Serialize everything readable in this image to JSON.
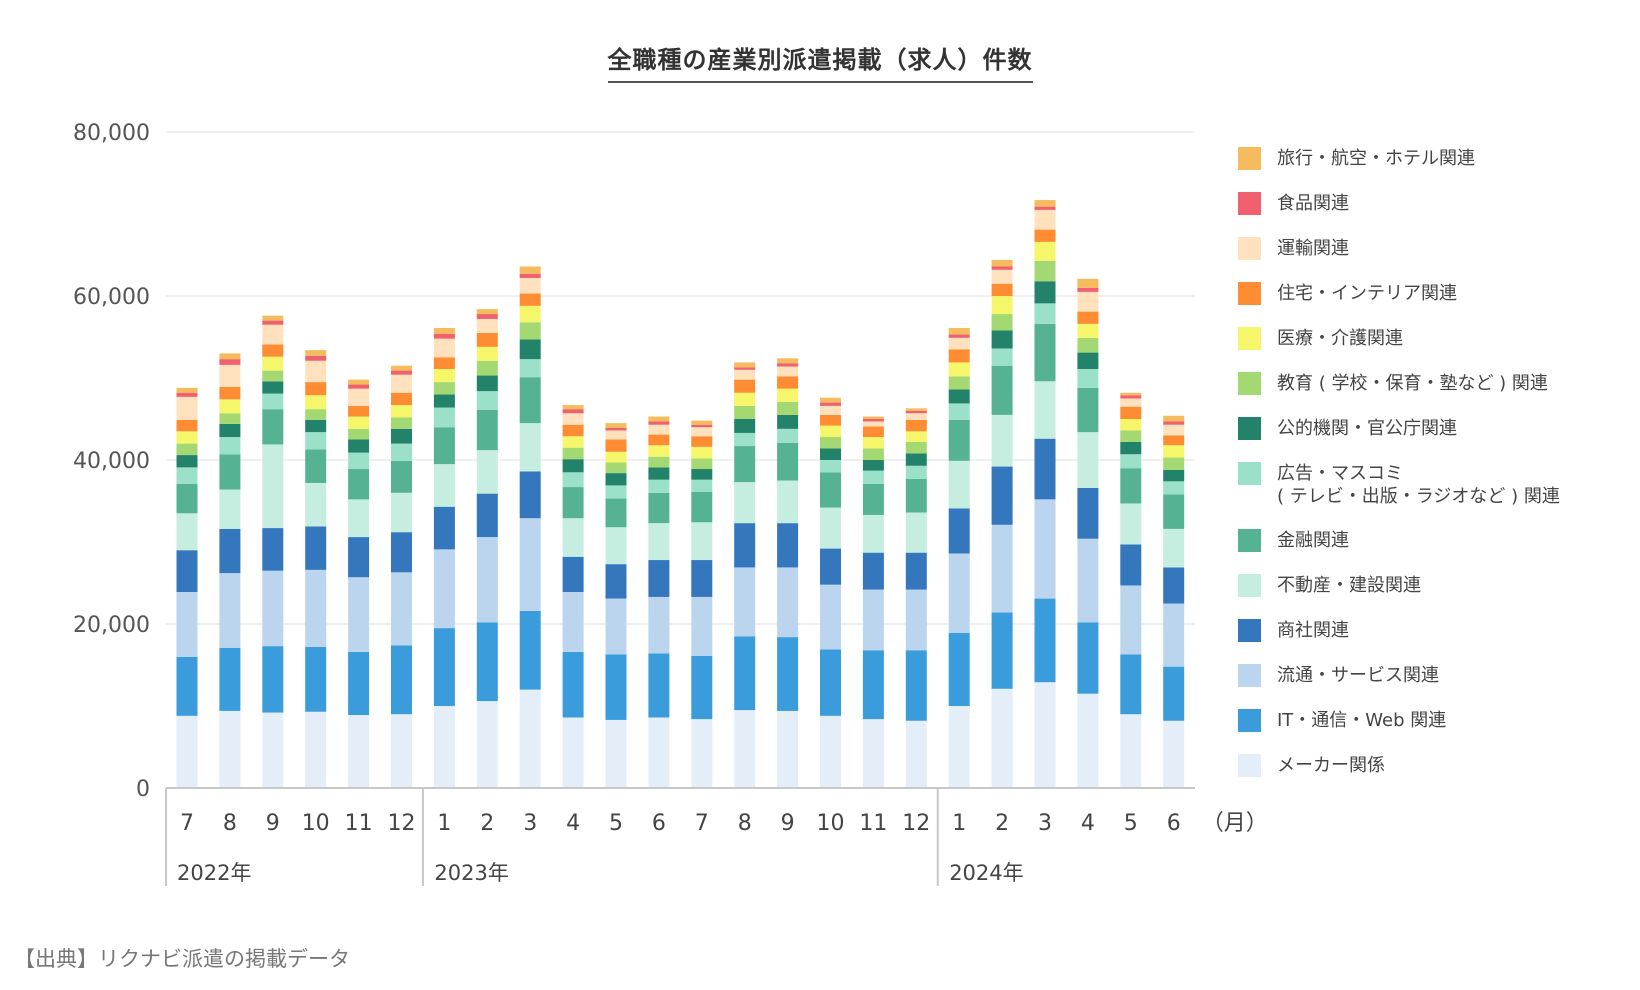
{
  "title": "全職種の産業別派遣掲載（求人）件数",
  "source": "【出典】リクナビ派遣の掲載データ",
  "chart_data": {
    "type": "bar",
    "stacked": true,
    "title": "全職種の産業別派遣掲載（求人）件数",
    "xlabel": "",
    "ylabel": "",
    "x_unit_label": "（月）",
    "ylim": [
      0,
      80000
    ],
    "yticks": [
      0,
      20000,
      40000,
      60000,
      80000
    ],
    "ytick_labels": [
      "0",
      "20,000",
      "40,000",
      "60,000",
      "80,000"
    ],
    "grid": true,
    "legend_position": "right",
    "categories": [
      "7",
      "8",
      "9",
      "10",
      "11",
      "12",
      "1",
      "2",
      "3",
      "4",
      "5",
      "6",
      "7",
      "8",
      "9",
      "10",
      "11",
      "12",
      "1",
      "2",
      "3",
      "4",
      "5",
      "6"
    ],
    "year_groups": [
      {
        "label": "2022年",
        "start": 0,
        "end": 5
      },
      {
        "label": "2023年",
        "start": 6,
        "end": 17
      },
      {
        "label": "2024年",
        "start": 18,
        "end": 23
      }
    ],
    "series": [
      {
        "name": "メーカー関係",
        "color": "#e3eef8",
        "values": [
          8800,
          9400,
          9200,
          9300,
          8900,
          9000,
          10000,
          10600,
          12000,
          8600,
          8300,
          8600,
          8400,
          9500,
          9400,
          8800,
          8400,
          8200,
          10000,
          12100,
          12900,
          11500,
          9000,
          8200
        ]
      },
      {
        "name": "IT・通信・Web 関連",
        "color": "#3a9cdb",
        "values": [
          7200,
          7700,
          8100,
          7900,
          7700,
          8400,
          9500,
          9600,
          9600,
          8000,
          8000,
          7800,
          7700,
          9000,
          9000,
          8100,
          8400,
          8600,
          8900,
          9300,
          10200,
          8700,
          7300,
          6600
        ]
      },
      {
        "name": "流通・サービス関連",
        "color": "#bcd5ee",
        "values": [
          7900,
          9100,
          9200,
          9400,
          9100,
          8900,
          9600,
          10400,
          11300,
          7300,
          6800,
          6900,
          7200,
          8400,
          8500,
          7900,
          7400,
          7400,
          9700,
          10700,
          12100,
          10200,
          8400,
          7700
        ]
      },
      {
        "name": "商社関連",
        "color": "#3477bc",
        "values": [
          5100,
          5400,
          5200,
          5300,
          4900,
          4900,
          5200,
          5300,
          5700,
          4300,
          4200,
          4500,
          4500,
          5400,
          5400,
          4400,
          4500,
          4500,
          5500,
          7100,
          7400,
          6200,
          5000,
          4400
        ]
      },
      {
        "name": "不動産・建設関連",
        "color": "#c5ede0",
        "values": [
          4500,
          4800,
          10200,
          5300,
          4600,
          4800,
          5200,
          5300,
          5900,
          4700,
          4500,
          4500,
          4600,
          5000,
          5200,
          5000,
          4600,
          4900,
          5800,
          6300,
          7000,
          6800,
          5000,
          4700
        ]
      },
      {
        "name": "金融関連",
        "color": "#55b394",
        "values": [
          3600,
          4300,
          4300,
          4100,
          3700,
          3900,
          4500,
          4900,
          5600,
          3800,
          3500,
          3700,
          3700,
          4400,
          4600,
          4300,
          3800,
          4100,
          5000,
          6000,
          7000,
          5400,
          4300,
          4200
        ]
      },
      {
        "name": "広告・マスコミ\n( テレビ・出版・ラジオなど ) 関連",
        "color": "#9be0c9",
        "values": [
          2000,
          2100,
          1900,
          2100,
          2000,
          2100,
          2400,
          2300,
          2200,
          1800,
          1600,
          1600,
          1500,
          1600,
          1700,
          1500,
          1600,
          1600,
          2000,
          2100,
          2500,
          2300,
          1700,
          1600
        ]
      },
      {
        "name": "公的機関・官公庁関連",
        "color": "#23826a",
        "values": [
          1500,
          1600,
          1500,
          1500,
          1600,
          1800,
          1600,
          1900,
          2400,
          1600,
          1500,
          1500,
          1300,
          1700,
          1700,
          1400,
          1300,
          1500,
          1700,
          2200,
          2700,
          2000,
          1500,
          1400
        ]
      },
      {
        "name": "教育 ( 学校・保育・塾など ) 関連",
        "color": "#a3d872",
        "values": [
          1400,
          1300,
          1300,
          1300,
          1300,
          1400,
          1500,
          1800,
          2100,
          1400,
          1300,
          1300,
          1300,
          1600,
          1600,
          1400,
          1400,
          1400,
          1600,
          2000,
          2500,
          1800,
          1400,
          1500
        ]
      },
      {
        "name": "医療・介護関連",
        "color": "#f6f66a",
        "values": [
          1500,
          1700,
          1700,
          1700,
          1500,
          1500,
          1600,
          1700,
          2000,
          1400,
          1300,
          1400,
          1400,
          1600,
          1600,
          1400,
          1400,
          1300,
          1700,
          2200,
          2300,
          1700,
          1400,
          1500
        ]
      },
      {
        "name": "住宅・インテリア関連",
        "color": "#fd8c32",
        "values": [
          1400,
          1500,
          1500,
          1600,
          1300,
          1500,
          1400,
          1700,
          1500,
          1400,
          1500,
          1300,
          1300,
          1600,
          1500,
          1300,
          1300,
          1400,
          1600,
          1500,
          1500,
          1500,
          1500,
          1200
        ]
      },
      {
        "name": "運輸関連",
        "color": "#ffe2bd",
        "values": [
          2800,
          2700,
          2400,
          2600,
          2100,
          2200,
          2300,
          1700,
          1900,
          1400,
          1100,
          1200,
          1100,
          1200,
          1200,
          1100,
          600,
          800,
          1400,
          1700,
          2400,
          2400,
          1000,
          1300
        ]
      },
      {
        "name": "食品関連",
        "color": "#f0606e",
        "values": [
          500,
          700,
          500,
          600,
          500,
          500,
          600,
          600,
          500,
          500,
          300,
          400,
          300,
          300,
          400,
          400,
          300,
          300,
          400,
          400,
          400,
          500,
          400,
          400
        ]
      },
      {
        "name": "旅行・航空・ホテル関連",
        "color": "#f6bb5c",
        "values": [
          600,
          700,
          600,
          700,
          600,
          600,
          700,
          600,
          900,
          500,
          600,
          600,
          500,
          600,
          600,
          600,
          300,
          300,
          800,
          800,
          800,
          1100,
          300,
          700
        ]
      }
    ]
  }
}
